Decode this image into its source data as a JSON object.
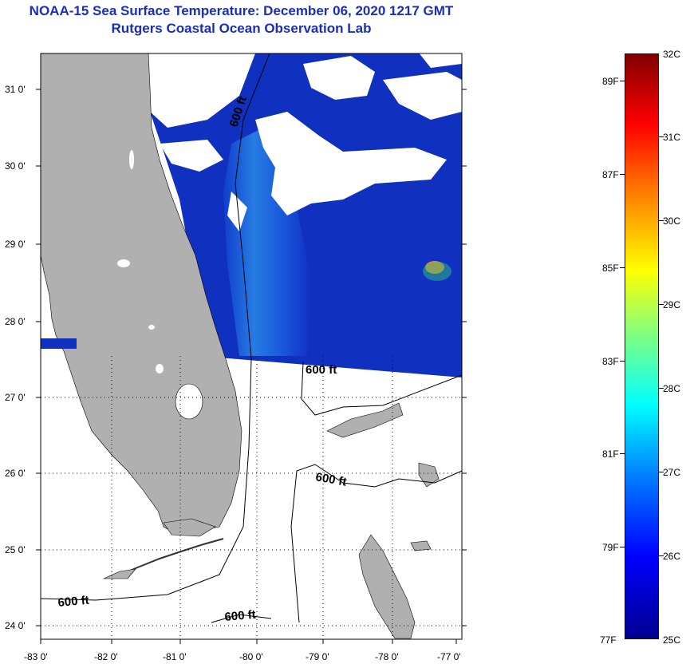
{
  "title": {
    "line1": "NOAA-15 Sea Surface Temperature:  December 06, 2020 1217 GMT",
    "line2": "Rutgers Coastal Ocean Observation Lab"
  },
  "map": {
    "lat_labels": [
      "31 0'",
      "30 0'",
      "29 0'",
      "28 0'",
      "27 0'",
      "26 0'",
      "25 0'",
      "24 0'"
    ],
    "lon_labels": [
      "-83 0'",
      "-82 0'",
      "-81 0'",
      "-80 0'",
      "-79 0'",
      "-78 0'",
      "-77 0'"
    ],
    "contour_labels": [
      "600 ft",
      "600 ft",
      "600 ft",
      "600 ft",
      "600 ft"
    ],
    "land_color": "#b0b0b0",
    "ocean_color": "#1030c0",
    "cloud_color": "#ffffff"
  },
  "colorbar": {
    "fahrenheit_labels": [
      "89F",
      "87F",
      "85F",
      "83F",
      "81F",
      "79F",
      "77F"
    ],
    "celsius_labels": [
      "32C",
      "31C",
      "30C",
      "29C",
      "28C",
      "27C",
      "26C",
      "25C"
    ]
  }
}
